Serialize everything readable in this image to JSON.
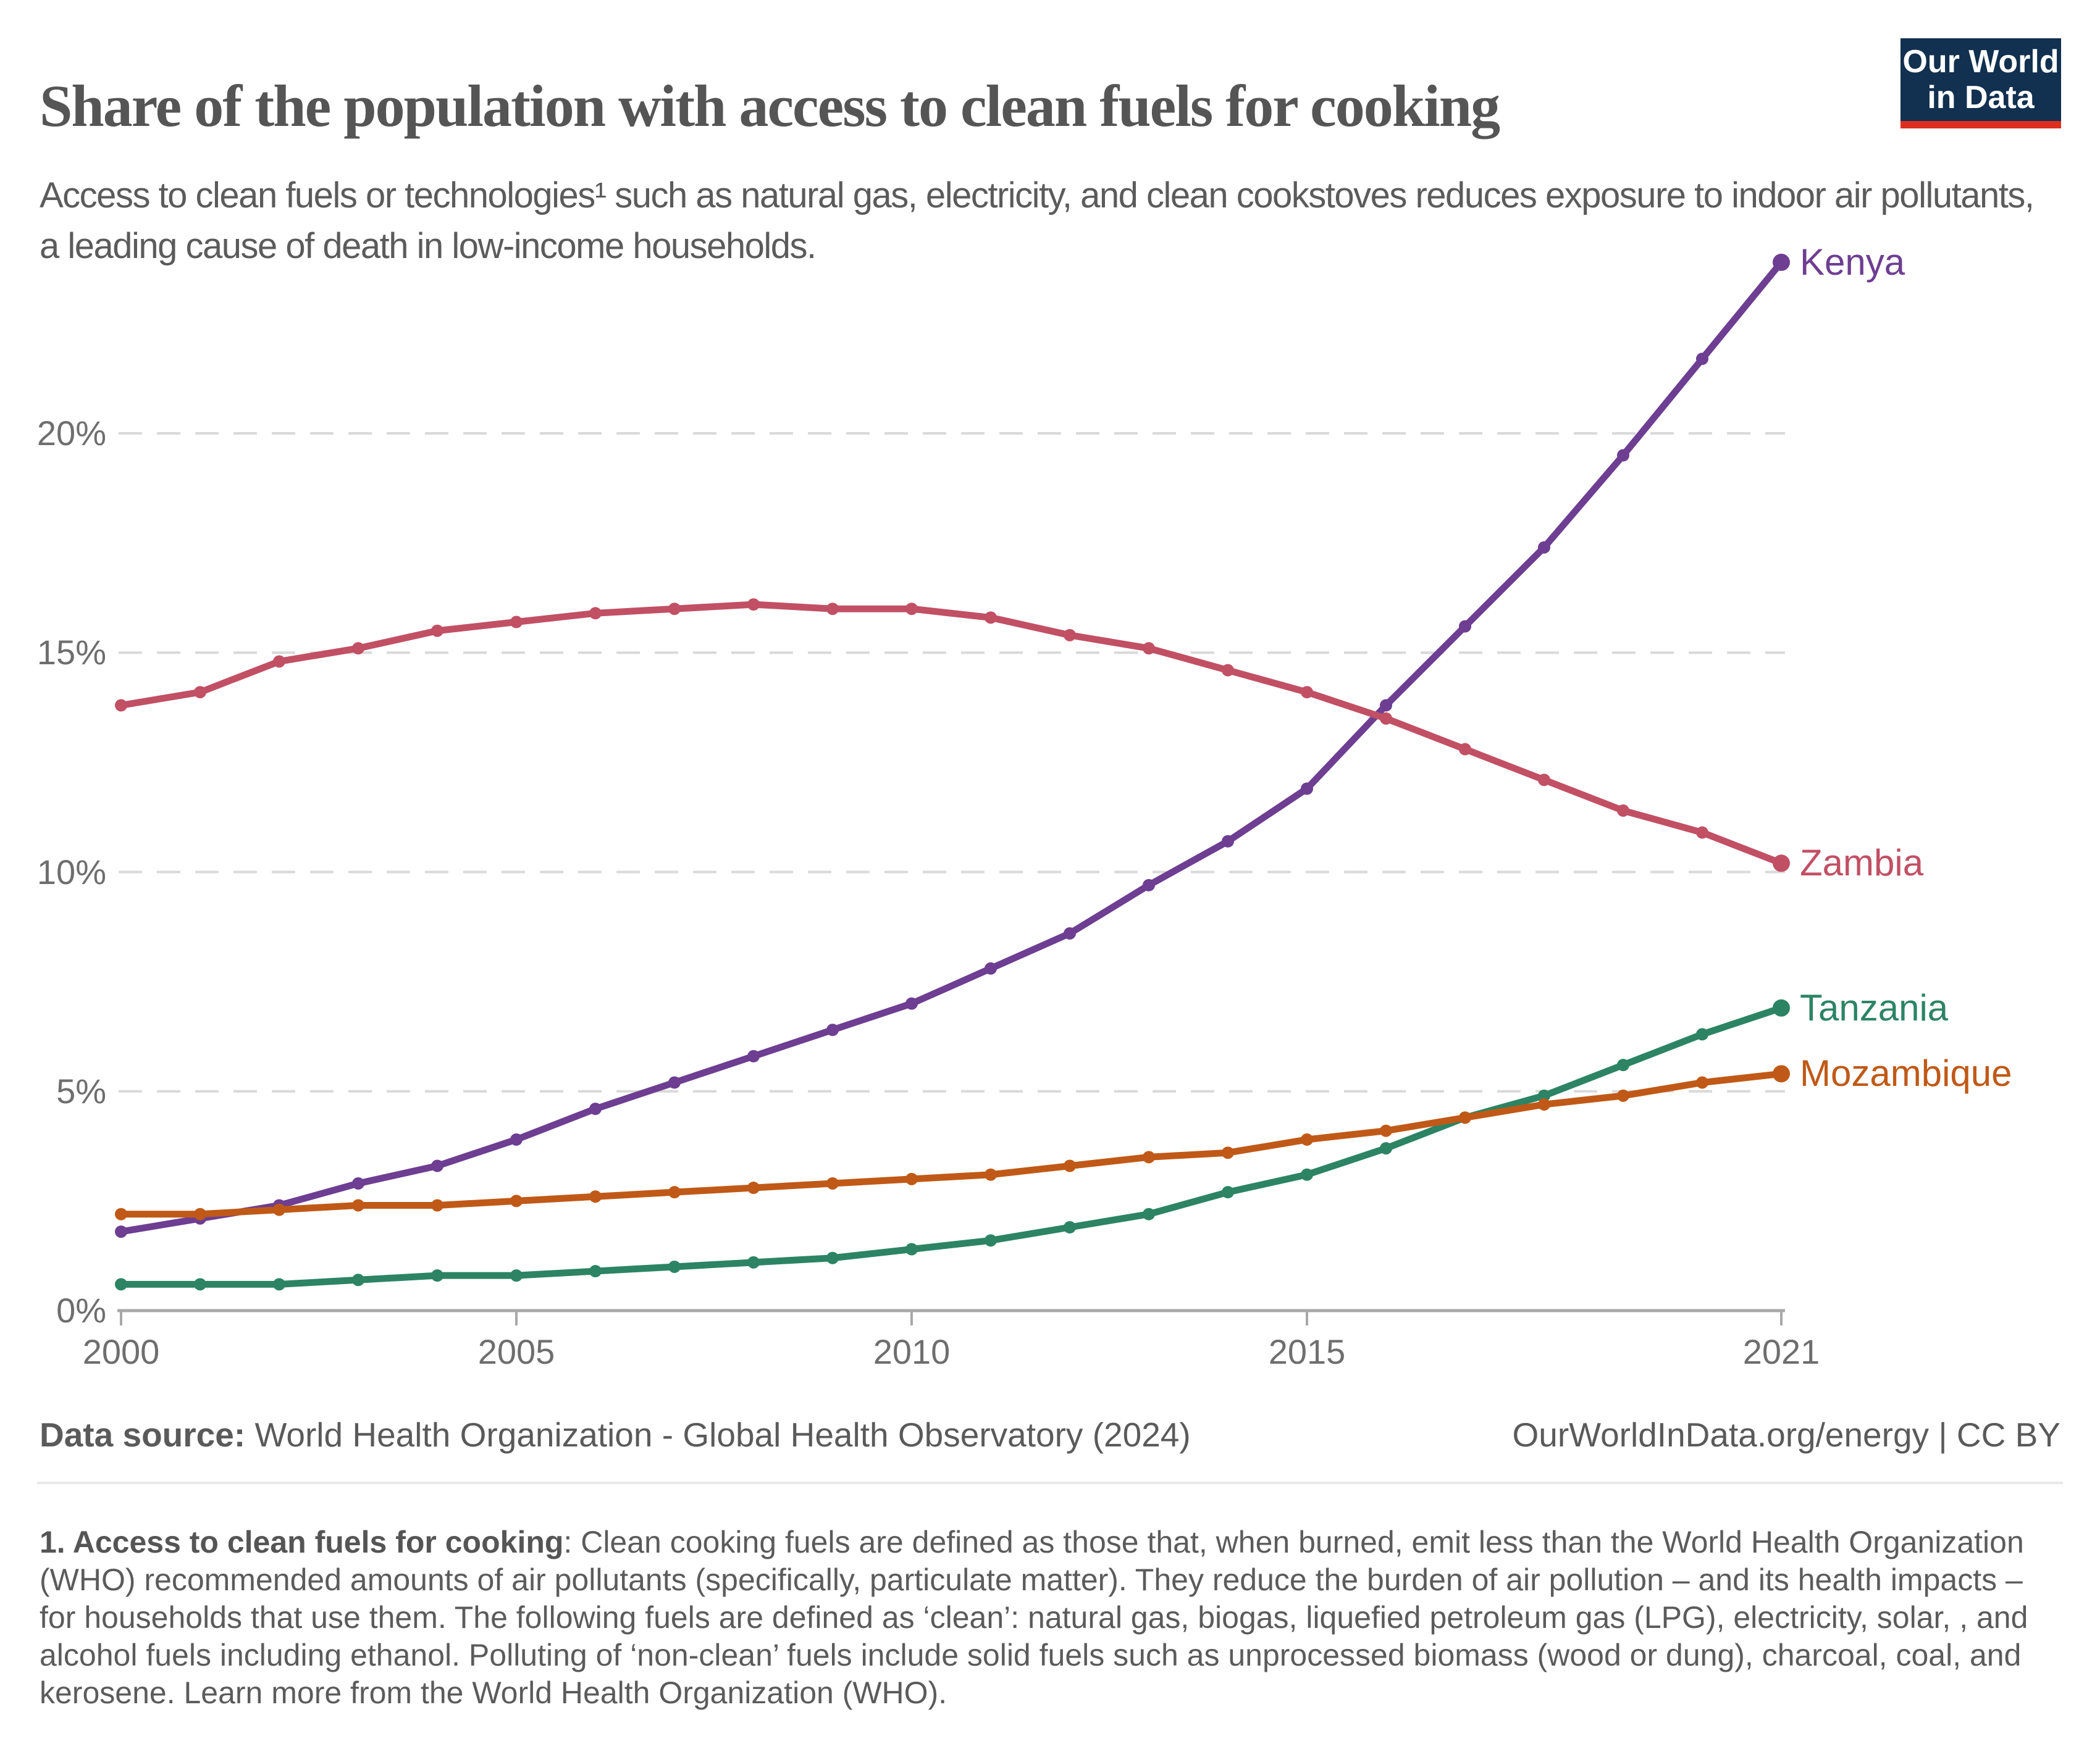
{
  "header": {
    "title": "Share of the population with access to clean fuels for cooking",
    "subtitle": "Access to clean fuels or technologies¹ such as natural gas, electricity, and clean cookstoves reduces exposure to indoor air pollutants, a leading cause of death in low-income households."
  },
  "logo": {
    "line1": "Our World",
    "line2": "in Data",
    "bg_color": "#12304f",
    "accent_color": "#dc2f1f"
  },
  "chart_data": {
    "type": "line",
    "title": "Share of the population with access to clean fuels for cooking",
    "xlabel": "",
    "ylabel": "",
    "x": [
      2000,
      2001,
      2002,
      2003,
      2004,
      2005,
      2006,
      2007,
      2008,
      2009,
      2010,
      2011,
      2012,
      2013,
      2014,
      2015,
      2016,
      2017,
      2018,
      2019,
      2020,
      2021
    ],
    "series": [
      {
        "name": "Kenya",
        "color": "#6d3e91",
        "values": [
          1.8,
          2.1,
          2.4,
          2.9,
          3.3,
          3.9,
          4.6,
          5.2,
          5.8,
          6.4,
          7.0,
          7.8,
          8.6,
          9.7,
          10.7,
          11.9,
          13.8,
          15.6,
          17.4,
          19.5,
          21.7,
          23.9
        ]
      },
      {
        "name": "Zambia",
        "color": "#c15065",
        "values": [
          13.8,
          14.1,
          14.8,
          15.1,
          15.5,
          15.7,
          15.9,
          16.0,
          16.1,
          16.0,
          16.0,
          15.8,
          15.4,
          15.1,
          14.6,
          14.1,
          13.5,
          12.8,
          12.1,
          11.4,
          10.9,
          10.2
        ]
      },
      {
        "name": "Tanzania",
        "color": "#2c8465",
        "values": [
          0.6,
          0.6,
          0.6,
          0.7,
          0.8,
          0.8,
          0.9,
          1.0,
          1.1,
          1.2,
          1.4,
          1.6,
          1.9,
          2.2,
          2.7,
          3.1,
          3.7,
          4.4,
          4.9,
          5.6,
          6.3,
          6.9
        ]
      },
      {
        "name": "Mozambique",
        "color": "#c05917",
        "values": [
          2.2,
          2.2,
          2.3,
          2.4,
          2.4,
          2.5,
          2.6,
          2.7,
          2.8,
          2.9,
          3.0,
          3.1,
          3.3,
          3.5,
          3.6,
          3.9,
          4.1,
          4.4,
          4.7,
          4.9,
          5.2,
          5.4
        ]
      }
    ],
    "ylim": [
      0,
      24.5
    ],
    "xlim": [
      2000,
      2021
    ],
    "grid": "horizontal dashed",
    "legend_position": "right end-of-line labels",
    "y_ticks": [
      {
        "value": 0,
        "label": "0%"
      },
      {
        "value": 5,
        "label": "5%"
      },
      {
        "value": 10,
        "label": "10%"
      },
      {
        "value": 15,
        "label": "15%"
      },
      {
        "value": 20,
        "label": "20%"
      }
    ],
    "x_ticks": [
      {
        "value": 2000,
        "label": "2000"
      },
      {
        "value": 2005,
        "label": "2005"
      },
      {
        "value": 2010,
        "label": "2010"
      },
      {
        "value": 2015,
        "label": "2015"
      },
      {
        "value": 2021,
        "label": "2021"
      }
    ]
  },
  "footer": {
    "data_source_label": "Data source:",
    "data_source_value": " World Health Organization - Global Health Observatory (2024)",
    "rights": "OurWorldInData.org/energy | CC BY"
  },
  "footnote": {
    "lead": "1. Access to clean fuels for cooking",
    "text": ": Clean cooking fuels are defined as those that, when burned, emit less than the World Health Organization (WHO) recommended amounts of air pollutants (specifically, particulate matter). They reduce the burden of air pollution – and its health impacts – for households that use them. The following fuels are defined as ‘clean’: natural gas, biogas, liquefied petroleum gas (LPG), electricity, solar, , and alcohol fuels including ethanol. Polluting of ‘non-clean’ fuels include solid fuels such as unprocessed biomass (wood or dung), charcoal, coal, and kerosene. Learn more from the World Health Organization (WHO)."
  }
}
